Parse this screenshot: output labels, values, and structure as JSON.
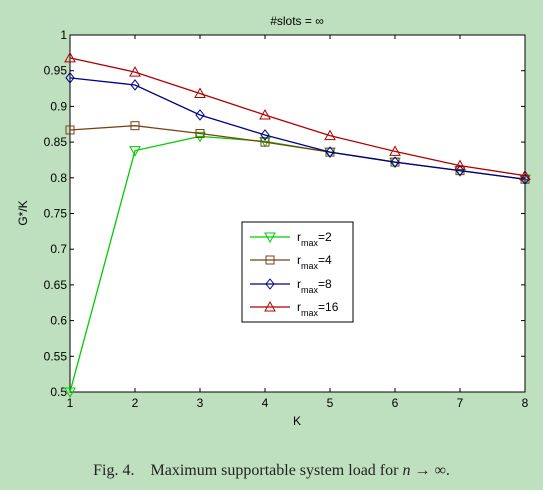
{
  "caption": {
    "figure_label": "Fig. 4.",
    "text": "Maximum supportable system load for",
    "math_var": "n",
    "math_rest": "→ ∞."
  },
  "chart_data": {
    "type": "line",
    "title": "#slots = ∞",
    "xlabel": "K",
    "ylabel": "G*/K",
    "xlim": [
      1,
      8
    ],
    "ylim": [
      0.5,
      1
    ],
    "xticks": [
      1,
      2,
      3,
      4,
      5,
      6,
      7,
      8
    ],
    "yticks": [
      0.5,
      0.55,
      0.6,
      0.65,
      0.7,
      0.75,
      0.8,
      0.85,
      0.9,
      0.95,
      1
    ],
    "ytick_labels": [
      "0.5",
      "0.55",
      "0.6",
      "0.65",
      "0.7",
      "0.75",
      "0.8",
      "0.85",
      "0.9",
      "0.95",
      "1"
    ],
    "grid": false,
    "legend_placement": "center-left",
    "x": [
      1,
      2,
      3,
      4,
      5,
      6,
      7,
      8
    ],
    "series": [
      {
        "name_base": "r",
        "name_sub": "max",
        "name_value": "=2",
        "color": "#00cc00",
        "marker": "triangle-down",
        "values": [
          0.5,
          0.838,
          0.858,
          0.851,
          0.836,
          0.822,
          0.81,
          0.798
        ]
      },
      {
        "name_base": "r",
        "name_sub": "max",
        "name_value": "=4",
        "color": "#7a4010",
        "marker": "square",
        "values": [
          0.867,
          0.873,
          0.862,
          0.85,
          0.836,
          0.822,
          0.81,
          0.798
        ]
      },
      {
        "name_base": "r",
        "name_sub": "max",
        "name_value": "=8",
        "color": "#00008b",
        "marker": "diamond",
        "values": [
          0.94,
          0.93,
          0.888,
          0.86,
          0.836,
          0.822,
          0.81,
          0.798
        ]
      },
      {
        "name_base": "r",
        "name_sub": "max",
        "name_value": "=16",
        "color": "#b00000",
        "marker": "triangle-up",
        "values": [
          0.968,
          0.948,
          0.918,
          0.888,
          0.859,
          0.837,
          0.817,
          0.803
        ]
      }
    ]
  }
}
